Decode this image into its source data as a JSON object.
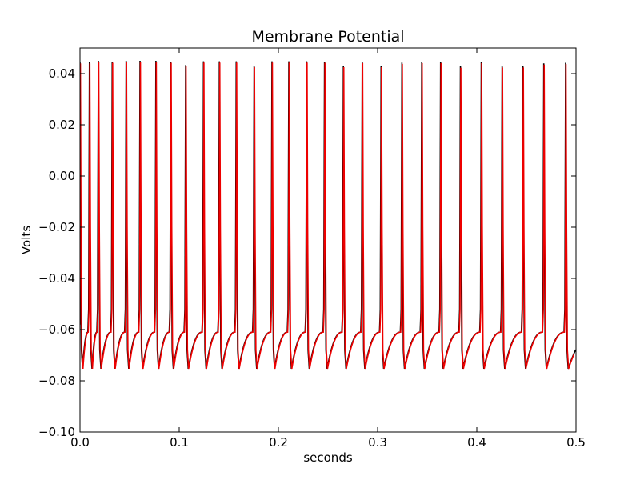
{
  "chart_data": {
    "type": "line",
    "title": "Membrane Potential",
    "xlabel": "seconds",
    "ylabel": "Volts",
    "xlim": [
      0.0,
      0.5
    ],
    "ylim": [
      -0.1,
      0.05
    ],
    "grid": false,
    "xticks": [
      "0.0",
      "0.1",
      "0.2",
      "0.3",
      "0.4",
      "0.5"
    ],
    "yticks": [
      "0.04",
      "0.02",
      "0.00",
      "−0.02",
      "−0.04",
      "−0.06",
      "−0.08",
      "−0.10"
    ],
    "spike_times": [
      0.0,
      0.0095,
      0.0185,
      0.0325,
      0.0465,
      0.0605,
      0.0765,
      0.0915,
      0.1065,
      0.1245,
      0.1405,
      0.1575,
      0.1755,
      0.1935,
      0.2105,
      0.2285,
      0.2465,
      0.2655,
      0.2845,
      0.3035,
      0.3245,
      0.3445,
      0.3635,
      0.3835,
      0.4045,
      0.4255,
      0.4465,
      0.4675,
      0.4895
    ],
    "spike_peaks": [
      0.044,
      0.044,
      0.0445,
      0.0442,
      0.0445,
      0.0445,
      0.0445,
      0.0442,
      0.0428,
      0.0443,
      0.0443,
      0.0443,
      0.0425,
      0.0443,
      0.0443,
      0.0443,
      0.0442,
      0.0425,
      0.0441,
      0.0425,
      0.0438,
      0.0441,
      0.0441,
      0.0423,
      0.0441,
      0.0424,
      0.0424,
      0.0435,
      0.0437
    ],
    "trough": -0.0753,
    "series": [
      {
        "color": "#000000"
      },
      {
        "color": "#ee0000"
      }
    ]
  }
}
